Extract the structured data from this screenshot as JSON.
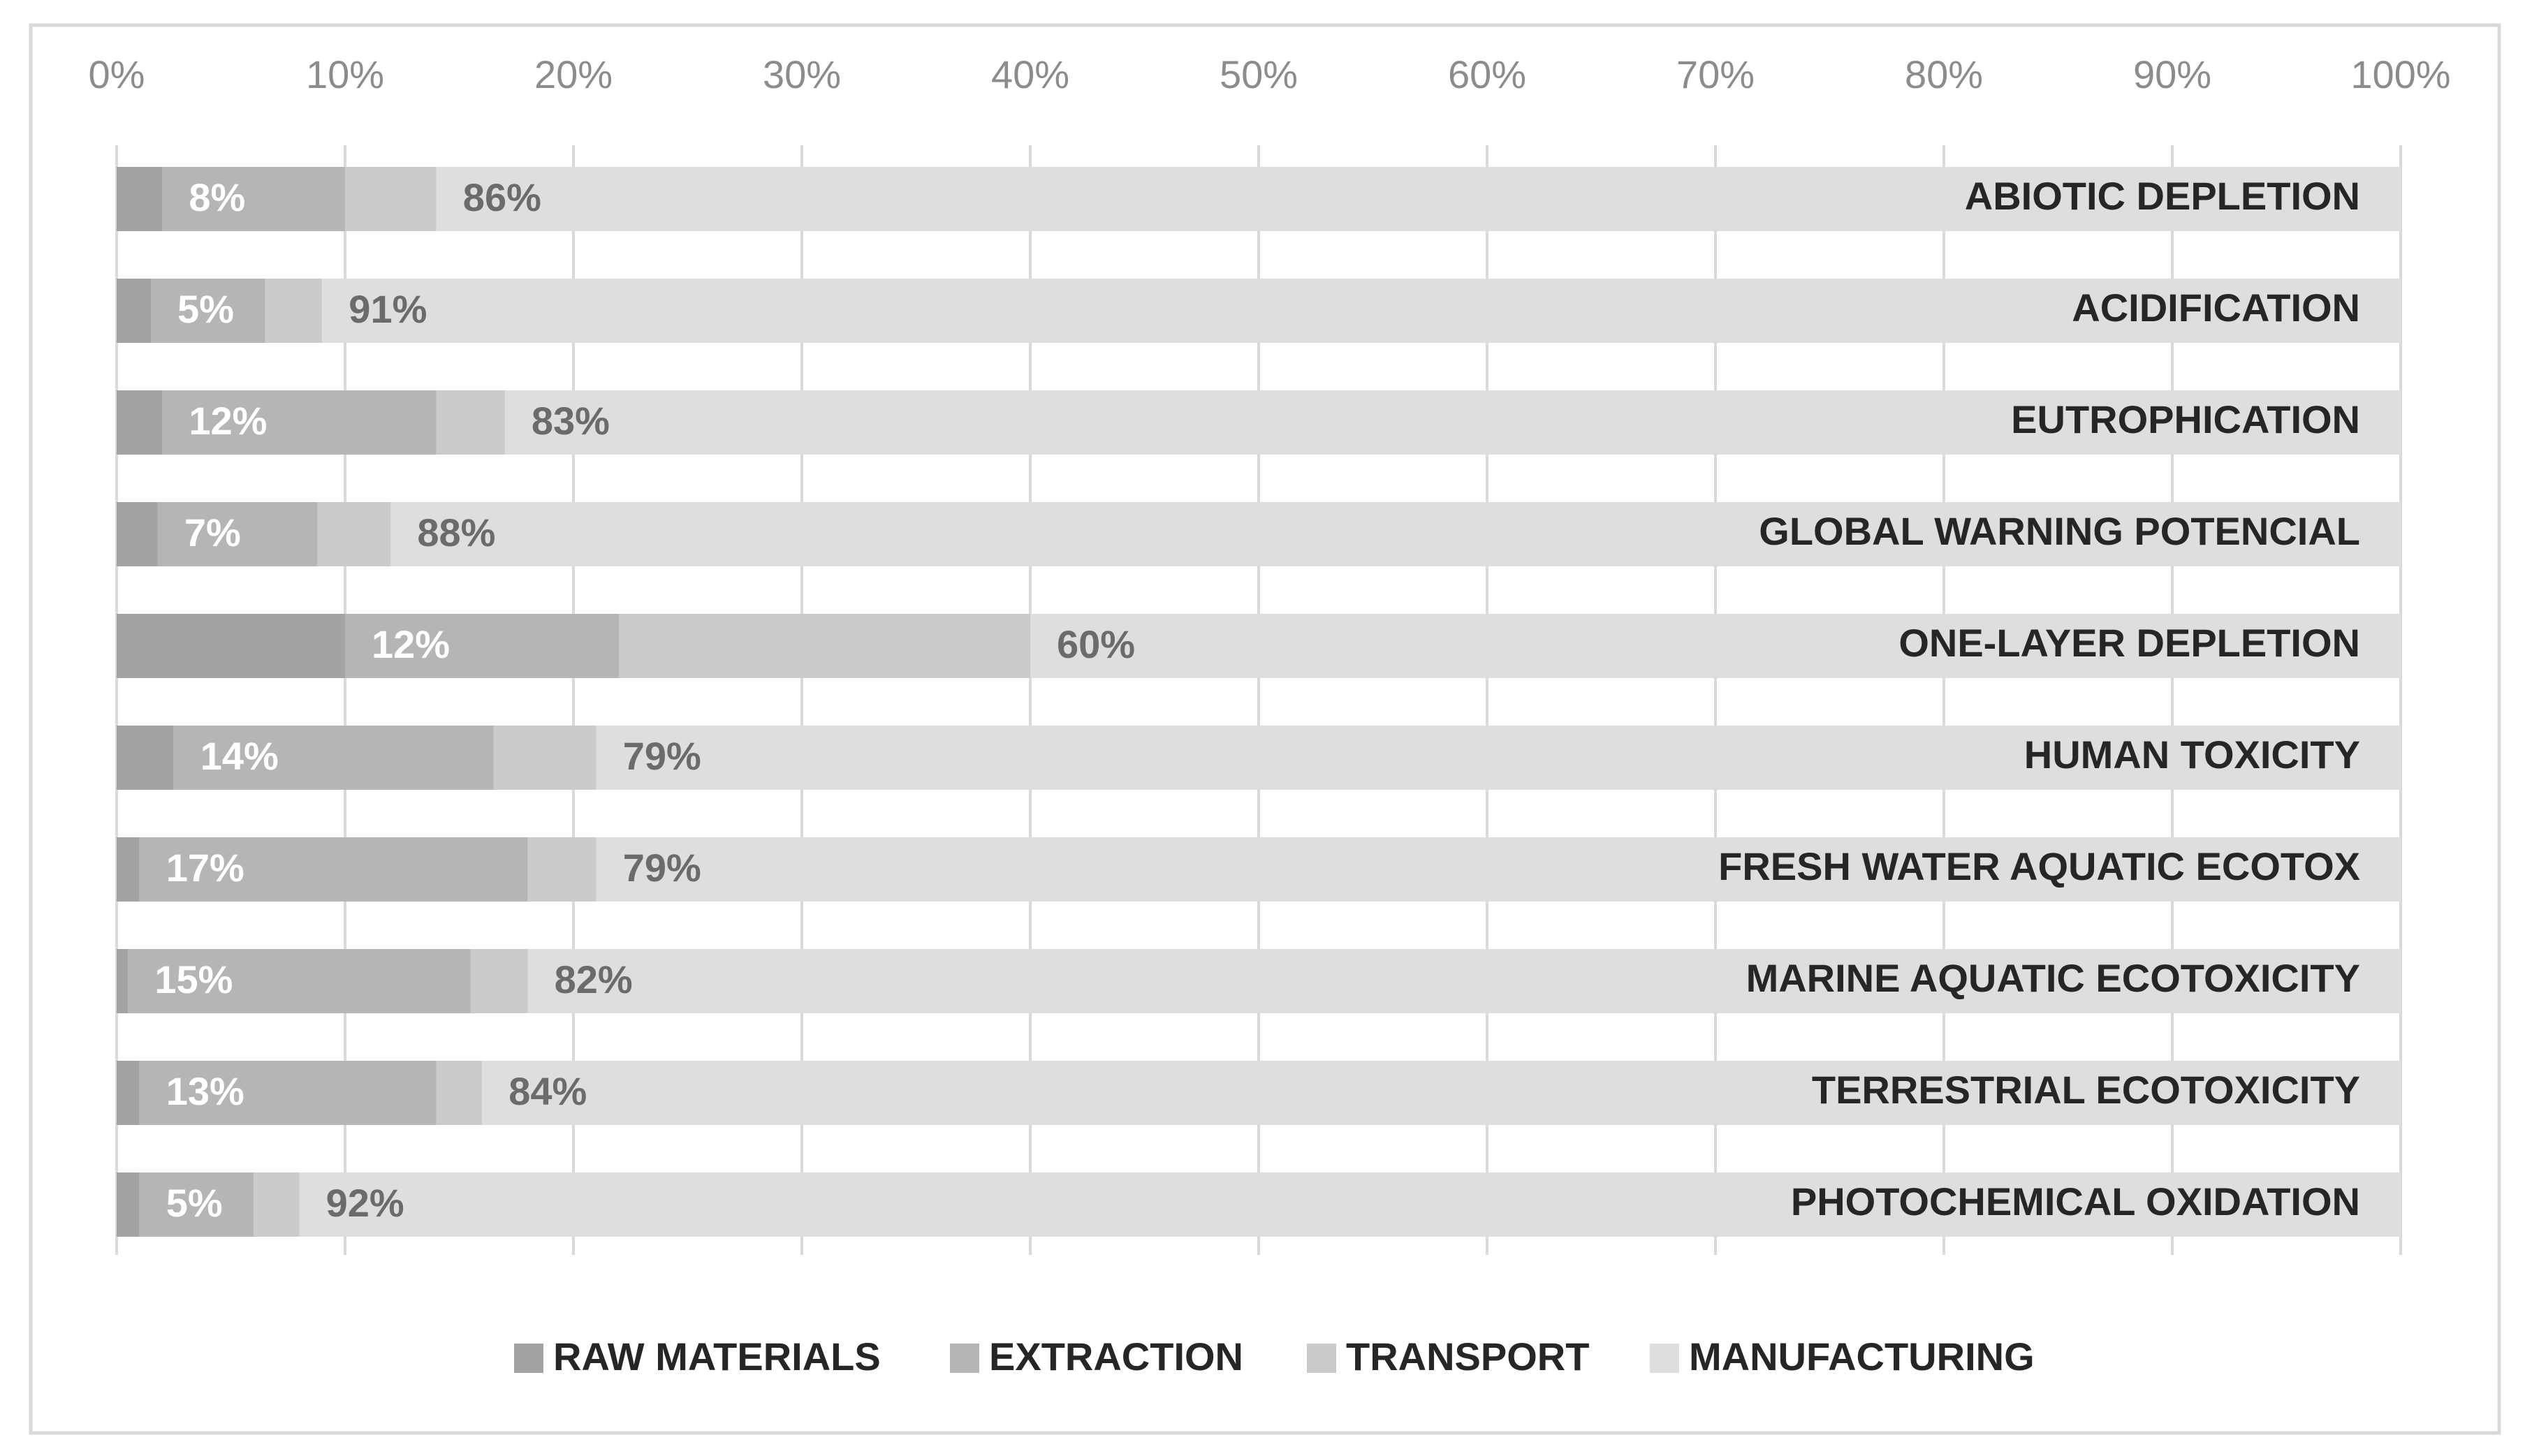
{
  "chart_data": {
    "type": "stacked-bar-horizontal",
    "categories": [
      "ABIOTIC DEPLETION",
      "ACIDIFICATION",
      "EUTROPHICATION",
      "GLOBAL WARNING POTENCIAL",
      "ONE-LAYER DEPLETION",
      "HUMAN TOXICITY",
      "FRESH WATER AQUATIC ECOTOX",
      "MARINE AQUATIC ECOTOXICITY",
      "TERRESTRIAL ECOTOXICITY",
      "PHOTOCHEMICAL OXIDATION"
    ],
    "series": [
      {
        "name": "RAW MATERIALS",
        "color": "#a3a3a3",
        "values": [
          2,
          1.5,
          2,
          1.8,
          10,
          2.5,
          1,
          0.5,
          1,
          1
        ]
      },
      {
        "name": "EXTRACTION",
        "color": "#b5b5b5",
        "values": [
          8,
          5,
          12,
          7,
          12,
          14,
          17,
          15,
          13,
          5
        ],
        "value_labels": [
          "8%",
          "5%",
          "12%",
          "7%",
          "12%",
          "14%",
          "17%",
          "15%",
          "13%",
          "5%"
        ],
        "label_color": "#ffffff"
      },
      {
        "name": "TRANSPORT",
        "color": "#cbcbcb",
        "values": [
          4,
          2.5,
          3,
          3.2,
          18,
          4.5,
          3,
          2.5,
          2,
          2
        ]
      },
      {
        "name": "MANUFACTURING",
        "color": "#dedede",
        "values": [
          86,
          91,
          83,
          88,
          60,
          79,
          79,
          82,
          84,
          92
        ],
        "value_labels": [
          "86%",
          "91%",
          "83%",
          "88%",
          "60%",
          "79%",
          "79%",
          "82%",
          "84%",
          "92%"
        ],
        "label_color": "#6b6b6b"
      }
    ],
    "xlim": [
      0,
      100
    ],
    "xticks": [
      {
        "value": 0,
        "label": "0%"
      },
      {
        "value": 10,
        "label": "10%"
      },
      {
        "value": 20,
        "label": "20%"
      },
      {
        "value": 30,
        "label": "30%"
      },
      {
        "value": 40,
        "label": "40%"
      },
      {
        "value": 50,
        "label": "50%"
      },
      {
        "value": 60,
        "label": "60%"
      },
      {
        "value": 70,
        "label": "70%"
      },
      {
        "value": 80,
        "label": "80%"
      },
      {
        "value": 90,
        "label": "90%"
      },
      {
        "value": 100,
        "label": "100%"
      }
    ],
    "grid": true,
    "legend": "bottom"
  }
}
